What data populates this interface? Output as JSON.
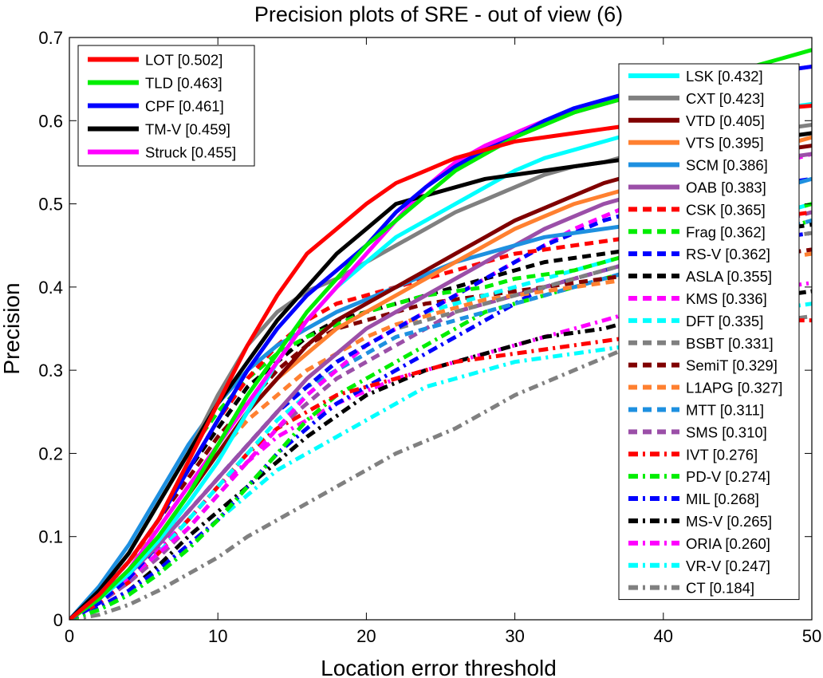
{
  "chart_data": {
    "type": "line",
    "title": "Precision plots of SRE - out of view (6)",
    "xlabel": "Location error threshold",
    "ylabel": "Precision",
    "xlim": [
      0,
      50
    ],
    "ylim": [
      0,
      0.7
    ],
    "xticks": [
      "0",
      "10",
      "20",
      "30",
      "40",
      "50"
    ],
    "yticks": [
      "0",
      "0.1",
      "0.2",
      "0.3",
      "0.4",
      "0.5",
      "0.6",
      "0.7"
    ],
    "grid": false,
    "legend_placement": [
      "top-left",
      "right"
    ],
    "x": [
      0,
      2,
      4,
      6,
      8,
      10,
      12,
      14,
      16,
      18,
      20,
      22,
      24,
      26,
      28,
      30,
      32,
      34,
      36,
      38,
      40,
      42,
      44,
      46,
      48,
      50
    ],
    "series": [
      {
        "name": "LOT [0.502]",
        "color": "#ff0000",
        "dash": "solid",
        "legend": "left",
        "values": [
          0,
          0.03,
          0.07,
          0.12,
          0.19,
          0.26,
          0.33,
          0.39,
          0.44,
          0.47,
          0.5,
          0.525,
          0.54,
          0.555,
          0.565,
          0.575,
          0.58,
          0.585,
          0.59,
          0.595,
          0.6,
          0.605,
          0.61,
          0.612,
          0.615,
          0.618
        ]
      },
      {
        "name": "TLD [0.463]",
        "color": "#00ee00",
        "dash": "solid",
        "legend": "left",
        "values": [
          0,
          0.025,
          0.06,
          0.1,
          0.15,
          0.21,
          0.27,
          0.32,
          0.37,
          0.41,
          0.45,
          0.48,
          0.51,
          0.54,
          0.56,
          0.58,
          0.595,
          0.61,
          0.62,
          0.63,
          0.64,
          0.645,
          0.655,
          0.665,
          0.675,
          0.685
        ]
      },
      {
        "name": "CPF [0.461]",
        "color": "#0000ff",
        "dash": "solid",
        "legend": "left",
        "values": [
          0,
          0.03,
          0.07,
          0.12,
          0.18,
          0.24,
          0.3,
          0.35,
          0.39,
          0.42,
          0.45,
          0.49,
          0.52,
          0.545,
          0.565,
          0.58,
          0.6,
          0.615,
          0.625,
          0.635,
          0.64,
          0.645,
          0.65,
          0.655,
          0.66,
          0.665
        ]
      },
      {
        "name": "TM-V [0.459]",
        "color": "#000000",
        "dash": "solid",
        "legend": "left",
        "values": [
          0,
          0.035,
          0.08,
          0.14,
          0.2,
          0.26,
          0.31,
          0.36,
          0.4,
          0.44,
          0.47,
          0.5,
          0.51,
          0.52,
          0.53,
          0.535,
          0.54,
          0.545,
          0.55,
          0.555,
          0.56,
          0.565,
          0.57,
          0.575,
          0.58,
          0.585
        ]
      },
      {
        "name": "Struck [0.455]",
        "color": "#ff00ff",
        "dash": "solid",
        "legend": "left",
        "values": [
          0,
          0.025,
          0.06,
          0.11,
          0.16,
          0.21,
          0.26,
          0.31,
          0.36,
          0.4,
          0.44,
          0.48,
          0.52,
          0.55,
          0.57,
          0.585,
          0.6,
          0.61,
          0.62,
          0.63,
          0.64,
          0.645,
          0.65,
          0.655,
          0.66,
          0.665
        ]
      },
      {
        "name": "LSK [0.432]",
        "color": "#00ffff",
        "dash": "solid",
        "legend": "right",
        "values": [
          0,
          0.025,
          0.055,
          0.095,
          0.14,
          0.19,
          0.25,
          0.31,
          0.36,
          0.4,
          0.43,
          0.46,
          0.48,
          0.5,
          0.52,
          0.54,
          0.555,
          0.565,
          0.575,
          0.585,
          0.595,
          0.6,
          0.605,
          0.61,
          0.615,
          0.62
        ]
      },
      {
        "name": "CXT [0.423]",
        "color": "#808080",
        "dash": "solid",
        "legend": "right",
        "values": [
          0,
          0.035,
          0.08,
          0.14,
          0.2,
          0.27,
          0.33,
          0.37,
          0.395,
          0.41,
          0.43,
          0.45,
          0.47,
          0.49,
          0.505,
          0.52,
          0.535,
          0.545,
          0.55,
          0.56,
          0.57,
          0.575,
          0.58,
          0.585,
          0.59,
          0.595
        ]
      },
      {
        "name": "VTD [0.405]",
        "color": "#800000",
        "dash": "solid",
        "legend": "right",
        "values": [
          0,
          0.025,
          0.06,
          0.1,
          0.15,
          0.2,
          0.25,
          0.29,
          0.33,
          0.36,
          0.38,
          0.4,
          0.42,
          0.44,
          0.46,
          0.48,
          0.495,
          0.51,
          0.525,
          0.535,
          0.545,
          0.55,
          0.555,
          0.56,
          0.565,
          0.57
        ]
      },
      {
        "name": "VTS [0.395]",
        "color": "#ff8030",
        "dash": "solid",
        "legend": "right",
        "values": [
          0,
          0.025,
          0.06,
          0.1,
          0.15,
          0.2,
          0.25,
          0.29,
          0.32,
          0.35,
          0.37,
          0.39,
          0.41,
          0.43,
          0.45,
          0.47,
          0.485,
          0.5,
          0.51,
          0.52,
          0.53,
          0.54,
          0.55,
          0.56,
          0.57,
          0.58
        ]
      },
      {
        "name": "SCM [0.386]",
        "color": "#1e90e0",
        "dash": "solid",
        "legend": "right",
        "values": [
          0,
          0.04,
          0.09,
          0.15,
          0.21,
          0.26,
          0.3,
          0.33,
          0.35,
          0.37,
          0.385,
          0.4,
          0.415,
          0.43,
          0.44,
          0.45,
          0.46,
          0.465,
          0.47,
          0.475,
          0.48,
          0.49,
          0.5,
          0.51,
          0.52,
          0.53
        ]
      },
      {
        "name": "OAB [0.383]",
        "color": "#9b4fa8",
        "dash": "solid",
        "legend": "right",
        "values": [
          0,
          0.025,
          0.055,
          0.09,
          0.13,
          0.17,
          0.21,
          0.25,
          0.29,
          0.32,
          0.35,
          0.37,
          0.39,
          0.41,
          0.43,
          0.45,
          0.47,
          0.485,
          0.5,
          0.51,
          0.52,
          0.53,
          0.54,
          0.55,
          0.555,
          0.56
        ]
      },
      {
        "name": "CSK [0.365]",
        "color": "#ff0000",
        "dash": "dash",
        "legend": "right",
        "values": [
          0,
          0.03,
          0.07,
          0.12,
          0.18,
          0.24,
          0.29,
          0.33,
          0.36,
          0.38,
          0.39,
          0.4,
          0.41,
          0.42,
          0.43,
          0.44,
          0.445,
          0.45,
          0.455,
          0.46,
          0.465,
          0.47,
          0.475,
          0.48,
          0.485,
          0.49
        ]
      },
      {
        "name": "Frag [0.362]",
        "color": "#00ee00",
        "dash": "dash",
        "legend": "right",
        "values": [
          0,
          0.035,
          0.08,
          0.14,
          0.2,
          0.25,
          0.29,
          0.32,
          0.34,
          0.355,
          0.37,
          0.38,
          0.39,
          0.395,
          0.4,
          0.41,
          0.415,
          0.42,
          0.43,
          0.44,
          0.45,
          0.46,
          0.47,
          0.48,
          0.49,
          0.5
        ]
      },
      {
        "name": "RS-V [0.362]",
        "color": "#0000ff",
        "dash": "dash",
        "legend": "right",
        "values": [
          0,
          0.02,
          0.05,
          0.09,
          0.13,
          0.17,
          0.21,
          0.25,
          0.28,
          0.31,
          0.33,
          0.35,
          0.37,
          0.39,
          0.41,
          0.43,
          0.45,
          0.465,
          0.48,
          0.49,
          0.5,
          0.51,
          0.515,
          0.52,
          0.525,
          0.53
        ]
      },
      {
        "name": "ASLA [0.355]",
        "color": "#000000",
        "dash": "dash",
        "legend": "right",
        "values": [
          0,
          0.03,
          0.07,
          0.12,
          0.18,
          0.23,
          0.28,
          0.31,
          0.34,
          0.36,
          0.37,
          0.38,
          0.39,
          0.4,
          0.41,
          0.42,
          0.43,
          0.435,
          0.44,
          0.445,
          0.45,
          0.455,
          0.46,
          0.465,
          0.47,
          0.475
        ]
      },
      {
        "name": "KMS [0.336]",
        "color": "#ff00ff",
        "dash": "dash",
        "legend": "right",
        "values": [
          0,
          0.02,
          0.05,
          0.08,
          0.11,
          0.15,
          0.19,
          0.23,
          0.27,
          0.3,
          0.33,
          0.35,
          0.37,
          0.39,
          0.41,
          0.43,
          0.45,
          0.47,
          0.485,
          0.5,
          0.51,
          0.52,
          0.53,
          0.54,
          0.55,
          0.56
        ]
      },
      {
        "name": "DFT [0.335]",
        "color": "#00ffff",
        "dash": "dash",
        "legend": "right",
        "values": [
          0,
          0.02,
          0.05,
          0.08,
          0.12,
          0.16,
          0.2,
          0.24,
          0.27,
          0.3,
          0.33,
          0.35,
          0.37,
          0.38,
          0.39,
          0.4,
          0.41,
          0.42,
          0.43,
          0.44,
          0.45,
          0.46,
          0.47,
          0.48,
          0.49,
          0.5
        ]
      },
      {
        "name": "BSBT [0.331]",
        "color": "#808080",
        "dash": "dash",
        "legend": "right",
        "values": [
          0,
          0.02,
          0.05,
          0.09,
          0.13,
          0.17,
          0.21,
          0.25,
          0.28,
          0.31,
          0.33,
          0.35,
          0.36,
          0.37,
          0.38,
          0.39,
          0.4,
          0.41,
          0.42,
          0.43,
          0.44,
          0.445,
          0.45,
          0.455,
          0.46,
          0.465
        ]
      },
      {
        "name": "SemiT [0.329]",
        "color": "#800000",
        "dash": "dash",
        "legend": "right",
        "values": [
          0,
          0.03,
          0.07,
          0.12,
          0.17,
          0.22,
          0.26,
          0.3,
          0.33,
          0.35,
          0.36,
          0.37,
          0.38,
          0.385,
          0.39,
          0.395,
          0.4,
          0.405,
          0.41,
          0.415,
          0.42,
          0.425,
          0.43,
          0.435,
          0.44,
          0.445
        ]
      },
      {
        "name": "L1APG [0.327]",
        "color": "#ff8030",
        "dash": "dash",
        "legend": "right",
        "values": [
          0,
          0.03,
          0.07,
          0.11,
          0.16,
          0.2,
          0.24,
          0.27,
          0.3,
          0.32,
          0.34,
          0.355,
          0.365,
          0.375,
          0.385,
          0.39,
          0.395,
          0.4,
          0.405,
          0.41,
          0.415,
          0.42,
          0.425,
          0.43,
          0.435,
          0.44
        ]
      },
      {
        "name": "MTT [0.311]",
        "color": "#1e90e0",
        "dash": "dash",
        "legend": "right",
        "values": [
          0,
          0.025,
          0.055,
          0.09,
          0.13,
          0.17,
          0.21,
          0.25,
          0.28,
          0.3,
          0.32,
          0.34,
          0.35,
          0.36,
          0.37,
          0.38,
          0.39,
          0.4,
          0.41,
          0.42,
          0.43,
          0.44,
          0.45,
          0.46,
          0.47,
          0.48
        ]
      },
      {
        "name": "SMS [0.310]",
        "color": "#9b4fa8",
        "dash": "dash",
        "legend": "right",
        "values": [
          0,
          0.02,
          0.045,
          0.075,
          0.11,
          0.15,
          0.19,
          0.23,
          0.26,
          0.29,
          0.31,
          0.33,
          0.35,
          0.37,
          0.38,
          0.39,
          0.4,
          0.41,
          0.42,
          0.43,
          0.44,
          0.45,
          0.46,
          0.47,
          0.48,
          0.49
        ]
      },
      {
        "name": "IVT [0.276]",
        "color": "#ff0000",
        "dash": "dashdot",
        "legend": "right",
        "values": [
          0,
          0.02,
          0.045,
          0.08,
          0.12,
          0.16,
          0.2,
          0.23,
          0.25,
          0.27,
          0.28,
          0.29,
          0.3,
          0.31,
          0.315,
          0.32,
          0.325,
          0.33,
          0.335,
          0.34,
          0.345,
          0.35,
          0.355,
          0.36,
          0.36,
          0.36
        ]
      },
      {
        "name": "PD-V [0.274]",
        "color": "#00ee00",
        "dash": "dashdot",
        "legend": "right",
        "values": [
          0,
          0.012,
          0.03,
          0.055,
          0.085,
          0.12,
          0.16,
          0.2,
          0.24,
          0.27,
          0.29,
          0.31,
          0.33,
          0.35,
          0.37,
          0.38,
          0.39,
          0.4,
          0.41,
          0.42,
          0.43,
          0.44,
          0.45,
          0.46,
          0.47,
          0.48
        ]
      },
      {
        "name": "MIL [0.268]",
        "color": "#0000ff",
        "dash": "dashdot",
        "legend": "right",
        "values": [
          0,
          0.015,
          0.035,
          0.06,
          0.09,
          0.12,
          0.16,
          0.2,
          0.23,
          0.26,
          0.28,
          0.3,
          0.32,
          0.34,
          0.36,
          0.38,
          0.4,
          0.41,
          0.42,
          0.43,
          0.44,
          0.445,
          0.45,
          0.455,
          0.46,
          0.465
        ]
      },
      {
        "name": "MS-V [0.265]",
        "color": "#000000",
        "dash": "dashdot",
        "legend": "right",
        "values": [
          0,
          0.015,
          0.035,
          0.065,
          0.1,
          0.13,
          0.16,
          0.19,
          0.22,
          0.245,
          0.27,
          0.285,
          0.3,
          0.31,
          0.32,
          0.33,
          0.34,
          0.345,
          0.35,
          0.36,
          0.37,
          0.375,
          0.38,
          0.385,
          0.39,
          0.395
        ]
      },
      {
        "name": "ORIA [0.260]",
        "color": "#ff00ff",
        "dash": "dashdot",
        "legend": "right",
        "values": [
          0,
          0.02,
          0.05,
          0.085,
          0.12,
          0.16,
          0.19,
          0.22,
          0.24,
          0.26,
          0.275,
          0.29,
          0.3,
          0.31,
          0.32,
          0.33,
          0.34,
          0.35,
          0.36,
          0.37,
          0.38,
          0.385,
          0.39,
          0.395,
          0.4,
          0.405
        ]
      },
      {
        "name": "VR-V [0.247]",
        "color": "#00ffff",
        "dash": "dashdot",
        "legend": "right",
        "values": [
          0,
          0.012,
          0.03,
          0.055,
          0.085,
          0.12,
          0.15,
          0.18,
          0.2,
          0.22,
          0.24,
          0.26,
          0.28,
          0.29,
          0.3,
          0.31,
          0.315,
          0.32,
          0.325,
          0.33,
          0.34,
          0.35,
          0.36,
          0.37,
          0.375,
          0.38
        ]
      },
      {
        "name": "CT [0.184]",
        "color": "#808080",
        "dash": "dashdot",
        "legend": "right",
        "values": [
          0,
          0.006,
          0.018,
          0.035,
          0.055,
          0.075,
          0.1,
          0.12,
          0.14,
          0.16,
          0.18,
          0.2,
          0.215,
          0.23,
          0.25,
          0.27,
          0.285,
          0.3,
          0.315,
          0.33,
          0.34,
          0.345,
          0.35,
          0.355,
          0.36,
          0.365
        ]
      }
    ]
  }
}
